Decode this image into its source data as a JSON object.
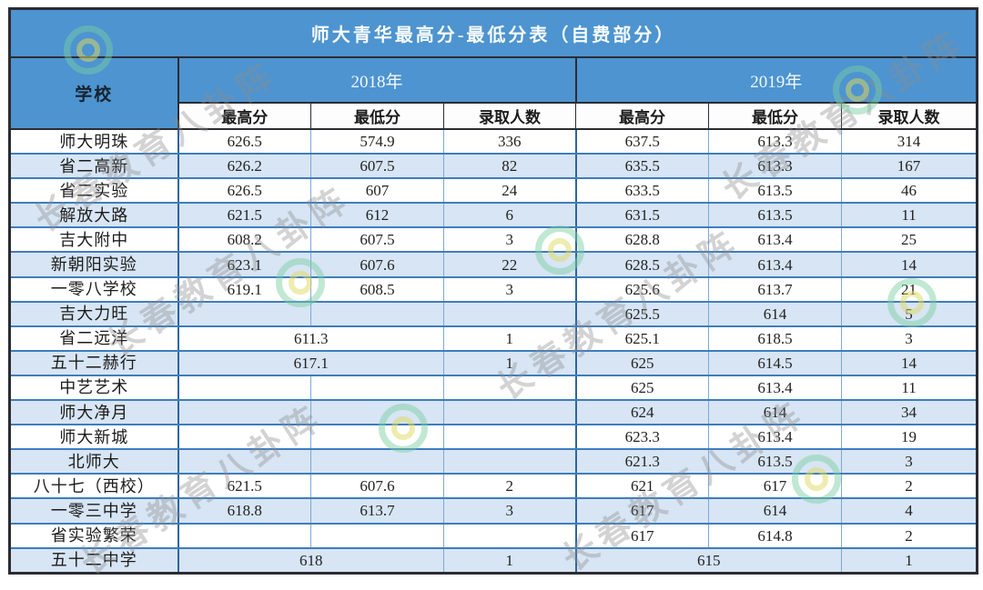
{
  "title": "师大青华最高分-最低分表（自费部分）",
  "header": {
    "school_col": "学校",
    "year_2018": "2018年",
    "year_2019": "2019年",
    "sub": {
      "max": "最高分",
      "min": "最低分",
      "count": "录取人数"
    }
  },
  "colors": {
    "header_blue": "#4D94D0",
    "stripe_blue": "#D7E5F4",
    "row_line_blue": "#3E7DBE",
    "col_line_blue": "#7FA8D4",
    "dark_border": "#2B2C33"
  },
  "watermark": {
    "text": "长春教育八卦阵",
    "logo": "swirl-circle-logo"
  },
  "rows": [
    {
      "school": "师大明珠",
      "y2018": {
        "merged": false,
        "max": "626.5",
        "min": "574.9",
        "count": "336"
      },
      "y2019": {
        "merged": false,
        "max": "637.5",
        "min": "613.3",
        "count": "314"
      }
    },
    {
      "school": "省二高新",
      "y2018": {
        "merged": false,
        "max": "626.2",
        "min": "607.5",
        "count": "82"
      },
      "y2019": {
        "merged": false,
        "max": "635.5",
        "min": "613.3",
        "count": "167"
      }
    },
    {
      "school": "省二实验",
      "y2018": {
        "merged": false,
        "max": "626.5",
        "min": "607",
        "count": "24"
      },
      "y2019": {
        "merged": false,
        "max": "633.5",
        "min": "613.5",
        "count": "46"
      }
    },
    {
      "school": "解放大路",
      "y2018": {
        "merged": false,
        "max": "621.5",
        "min": "612",
        "count": "6"
      },
      "y2019": {
        "merged": false,
        "max": "631.5",
        "min": "613.5",
        "count": "11"
      }
    },
    {
      "school": "吉大附中",
      "y2018": {
        "merged": false,
        "max": "608.2",
        "min": "607.5",
        "count": "3"
      },
      "y2019": {
        "merged": false,
        "max": "628.8",
        "min": "613.4",
        "count": "25"
      }
    },
    {
      "school": "新朝阳实验",
      "y2018": {
        "merged": false,
        "max": "623.1",
        "min": "607.6",
        "count": "22"
      },
      "y2019": {
        "merged": false,
        "max": "628.5",
        "min": "613.4",
        "count": "14"
      }
    },
    {
      "school": "一零八学校",
      "y2018": {
        "merged": false,
        "max": "619.1",
        "min": "608.5",
        "count": "3"
      },
      "y2019": {
        "merged": false,
        "max": "625.6",
        "min": "613.7",
        "count": "21"
      }
    },
    {
      "school": "吉大力旺",
      "y2018": {
        "merged": false,
        "max": "",
        "min": "",
        "count": ""
      },
      "y2019": {
        "merged": false,
        "max": "625.5",
        "min": "614",
        "count": "5"
      }
    },
    {
      "school": "省二远洋",
      "y2018": {
        "merged": true,
        "max": "611.3",
        "min": "",
        "count": "1"
      },
      "y2019": {
        "merged": false,
        "max": "625.1",
        "min": "618.5",
        "count": "3"
      }
    },
    {
      "school": "五十二赫行",
      "y2018": {
        "merged": true,
        "max": "617.1",
        "min": "",
        "count": "1"
      },
      "y2019": {
        "merged": false,
        "max": "625",
        "min": "614.5",
        "count": "14"
      }
    },
    {
      "school": "中艺艺术",
      "y2018": {
        "merged": false,
        "max": "",
        "min": "",
        "count": ""
      },
      "y2019": {
        "merged": false,
        "max": "625",
        "min": "613.4",
        "count": "11"
      }
    },
    {
      "school": "师大净月",
      "y2018": {
        "merged": false,
        "max": "",
        "min": "",
        "count": ""
      },
      "y2019": {
        "merged": false,
        "max": "624",
        "min": "614",
        "count": "34"
      }
    },
    {
      "school": "师大新城",
      "y2018": {
        "merged": false,
        "max": "",
        "min": "",
        "count": ""
      },
      "y2019": {
        "merged": false,
        "max": "623.3",
        "min": "613.4",
        "count": "19"
      }
    },
    {
      "school": "北师大",
      "y2018": {
        "merged": false,
        "max": "",
        "min": "",
        "count": ""
      },
      "y2019": {
        "merged": false,
        "max": "621.3",
        "min": "613.5",
        "count": "3"
      }
    },
    {
      "school": "八十七（西校）",
      "y2018": {
        "merged": false,
        "max": "621.5",
        "min": "607.6",
        "count": "2"
      },
      "y2019": {
        "merged": false,
        "max": "621",
        "min": "617",
        "count": "2"
      }
    },
    {
      "school": "一零三中学",
      "y2018": {
        "merged": false,
        "max": "618.8",
        "min": "613.7",
        "count": "3"
      },
      "y2019": {
        "merged": false,
        "max": "617",
        "min": "614",
        "count": "4"
      }
    },
    {
      "school": "省实验繁荣",
      "y2018": {
        "merged": false,
        "max": "",
        "min": "",
        "count": ""
      },
      "y2019": {
        "merged": false,
        "max": "617",
        "min": "614.8",
        "count": "2"
      }
    },
    {
      "school": "五十二中学",
      "y2018": {
        "merged": true,
        "max": "618",
        "min": "",
        "count": "1"
      },
      "y2019": {
        "merged": true,
        "max": "615",
        "min": "",
        "count": "1"
      }
    }
  ]
}
